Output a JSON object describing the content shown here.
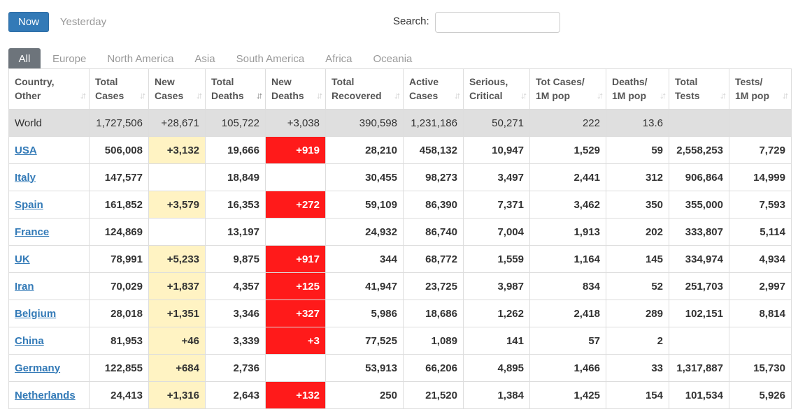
{
  "toolbar": {
    "now_label": "Now",
    "yesterday_label": "Yesterday",
    "search_label": "Search:",
    "search_value": ""
  },
  "tabs": [
    "All",
    "Europe",
    "North America",
    "Asia",
    "South America",
    "Africa",
    "Oceania"
  ],
  "columns": [
    [
      "Country,",
      "Other"
    ],
    [
      "Total",
      "Cases"
    ],
    [
      "New",
      "Cases"
    ],
    [
      "Total",
      "Deaths"
    ],
    [
      "New",
      "Deaths"
    ],
    [
      "Total",
      "Recovered"
    ],
    [
      "Active",
      "Cases"
    ],
    [
      "Serious,",
      "Critical"
    ],
    [
      "Tot Cases/",
      "1M pop"
    ],
    [
      "Deaths/",
      "1M pop"
    ],
    [
      "Total",
      "Tests"
    ],
    [
      "Tests/",
      "1M pop"
    ]
  ],
  "world": [
    "World",
    "1,727,506",
    "+28,671",
    "105,722",
    "+3,038",
    "390,598",
    "1,231,186",
    "50,271",
    "222",
    "13.6",
    "",
    ""
  ],
  "rows": [
    [
      "USA",
      "506,008",
      "+3,132",
      "19,666",
      "+919",
      "28,210",
      "458,132",
      "10,947",
      "1,529",
      "59",
      "2,558,253",
      "7,729"
    ],
    [
      "Italy",
      "147,577",
      "",
      "18,849",
      "",
      "30,455",
      "98,273",
      "3,497",
      "2,441",
      "312",
      "906,864",
      "14,999"
    ],
    [
      "Spain",
      "161,852",
      "+3,579",
      "16,353",
      "+272",
      "59,109",
      "86,390",
      "7,371",
      "3,462",
      "350",
      "355,000",
      "7,593"
    ],
    [
      "France",
      "124,869",
      "",
      "13,197",
      "",
      "24,932",
      "86,740",
      "7,004",
      "1,913",
      "202",
      "333,807",
      "5,114"
    ],
    [
      "UK",
      "78,991",
      "+5,233",
      "9,875",
      "+917",
      "344",
      "68,772",
      "1,559",
      "1,164",
      "145",
      "334,974",
      "4,934"
    ],
    [
      "Iran",
      "70,029",
      "+1,837",
      "4,357",
      "+125",
      "41,947",
      "23,725",
      "3,987",
      "834",
      "52",
      "251,703",
      "2,997"
    ],
    [
      "Belgium",
      "28,018",
      "+1,351",
      "3,346",
      "+327",
      "5,986",
      "18,686",
      "1,262",
      "2,418",
      "289",
      "102,151",
      "8,814"
    ],
    [
      "China",
      "81,953",
      "+46",
      "3,339",
      "+3",
      "77,525",
      "1,089",
      "141",
      "57",
      "2",
      "",
      ""
    ],
    [
      "Germany",
      "122,855",
      "+684",
      "2,736",
      "",
      "53,913",
      "66,206",
      "4,895",
      "1,466",
      "33",
      "1,317,887",
      "15,730"
    ],
    [
      "Netherlands",
      "24,413",
      "+1,316",
      "2,643",
      "+132",
      "250",
      "21,520",
      "1,384",
      "1,425",
      "154",
      "101,534",
      "5,926"
    ]
  ],
  "colors": {
    "now_button": "#337ab7",
    "new_cases_highlight": "#fff3c3",
    "new_deaths_highlight": "#ff1a1a",
    "world_row": "#dfdfdf",
    "active_tab": "#6d747b",
    "country_link": "#337ab7"
  }
}
